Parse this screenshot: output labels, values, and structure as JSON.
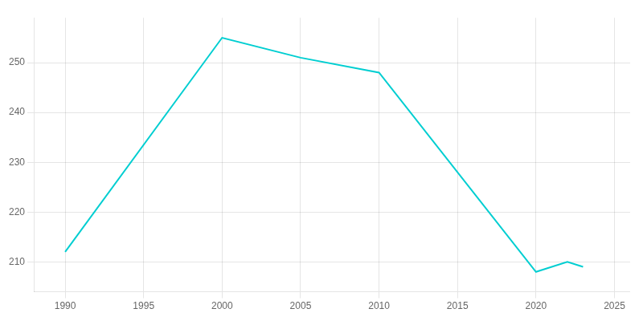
{
  "chart_data": {
    "type": "line",
    "x": [
      1990,
      2000,
      2005,
      2010,
      2020,
      2022,
      2023
    ],
    "values": [
      212,
      255,
      251,
      248,
      208,
      210,
      209
    ],
    "color": "#00CED1",
    "xlim": [
      1988,
      2026
    ],
    "ylim": [
      204,
      259
    ],
    "xticks": [
      1990,
      1995,
      2000,
      2005,
      2010,
      2015,
      2020,
      2025
    ],
    "yticks": [
      210,
      220,
      230,
      240,
      250
    ],
    "grid": true
  }
}
